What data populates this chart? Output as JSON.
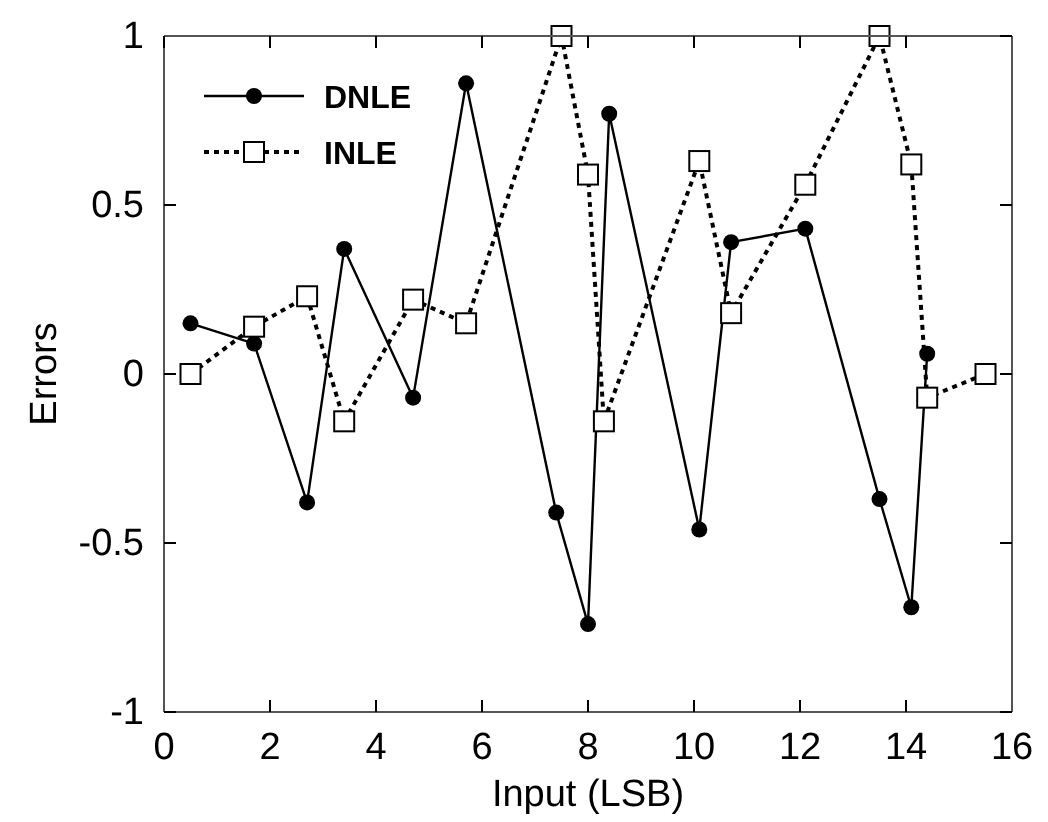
{
  "chart_data": {
    "type": "line",
    "xlabel": "Input (LSB)",
    "ylabel": "Errors",
    "xlim": [
      0,
      16
    ],
    "xticks": [
      0,
      2,
      4,
      6,
      8,
      10,
      12,
      14,
      16
    ],
    "ylim": [
      -1,
      1
    ],
    "yticks": [
      -1,
      -0.5,
      0,
      0.5,
      1
    ],
    "grid": false,
    "legend": "top left",
    "series": [
      {
        "name": "DNLE",
        "color": "#000000",
        "marker": "circle",
        "line_style": "solid",
        "x": [
          0.5,
          1.7,
          2.7,
          3.4,
          4.7,
          5.7,
          7.4,
          8.0,
          8.4,
          10.1,
          10.7,
          12.1,
          13.5,
          14.1,
          14.4
        ],
        "values": [
          0.15,
          0.09,
          -0.38,
          0.37,
          -0.07,
          0.86,
          -0.41,
          -0.74,
          0.77,
          -0.46,
          0.39,
          0.43,
          -0.37,
          -0.69,
          0.06
        ]
      },
      {
        "name": "INLE",
        "color": "#000000",
        "marker": "square",
        "line_style": "dotted",
        "x": [
          0.5,
          1.7,
          2.7,
          3.4,
          4.7,
          5.7,
          7.5,
          8.0,
          8.3,
          10.1,
          10.7,
          12.1,
          13.5,
          14.1,
          14.4,
          15.5
        ],
        "values": [
          0,
          0.14,
          0.23,
          -0.14,
          0.22,
          0.15,
          1.0,
          0.59,
          -0.14,
          0.63,
          0.18,
          0.56,
          1.0,
          0.62,
          -0.07,
          0
        ]
      }
    ]
  }
}
